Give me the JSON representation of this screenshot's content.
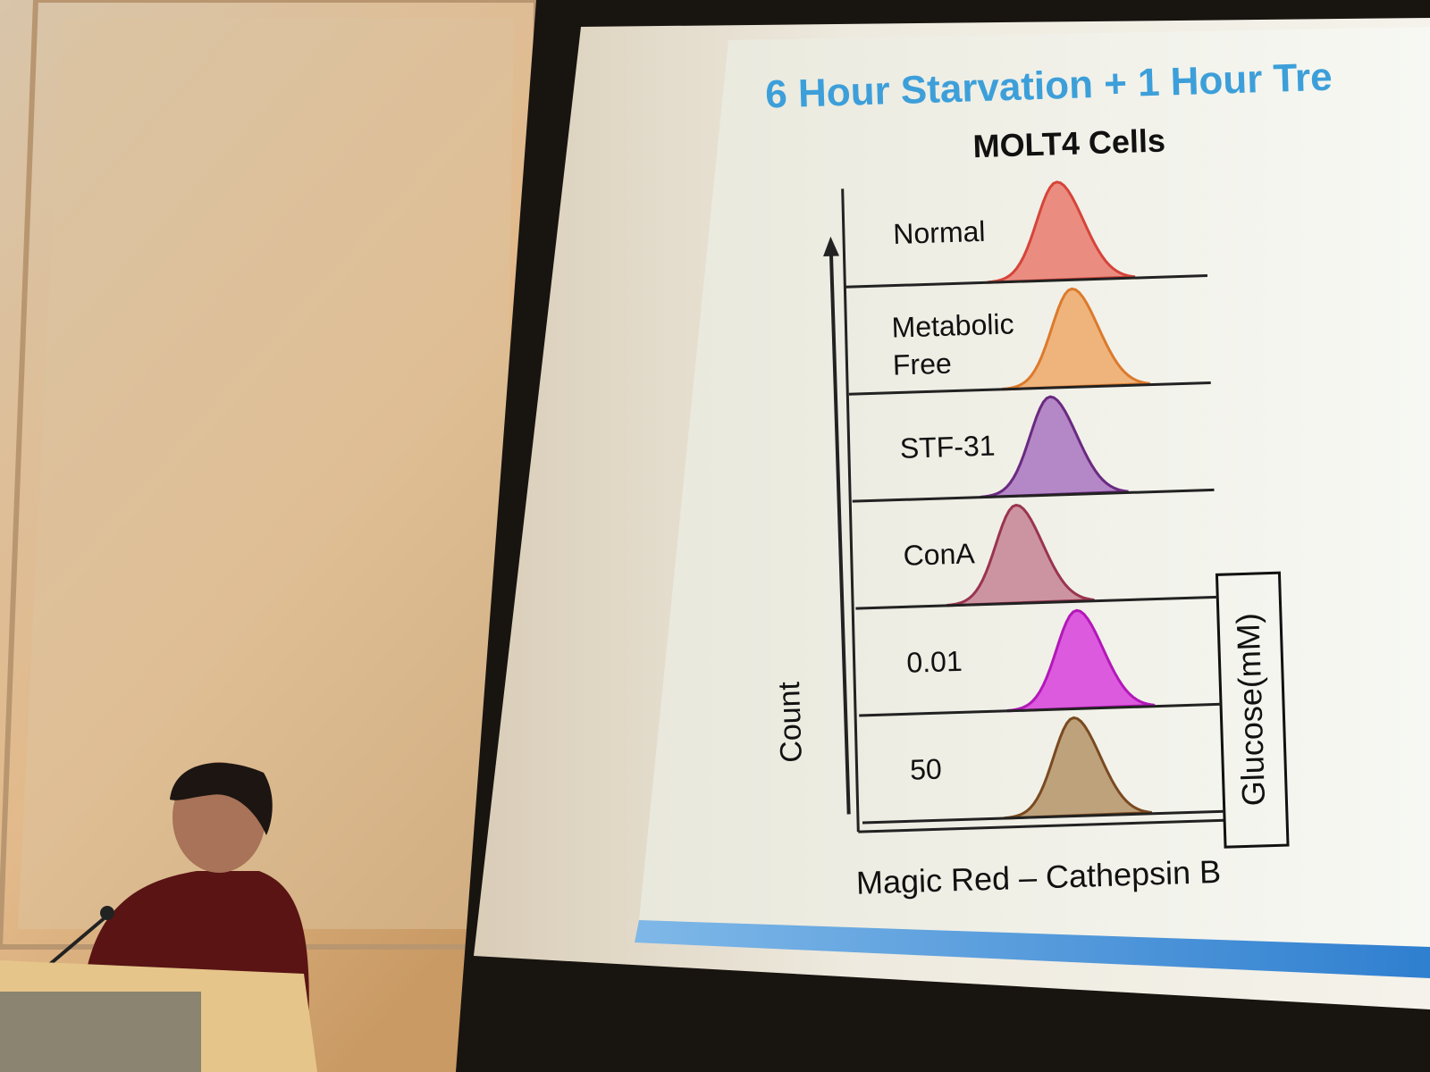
{
  "slide": {
    "title": "6 Hour Starvation + 1 Hour Tre",
    "chart": {
      "title": "MOLT4 Cells",
      "rows": [
        "Normal",
        "Metabolic Free",
        "STF-31",
        "ConA",
        "0.01",
        "50"
      ],
      "y_label": "Count",
      "x_label": "Magic Red – Cathepsin B",
      "group_label": "Glucose(mM)"
    }
  }
}
